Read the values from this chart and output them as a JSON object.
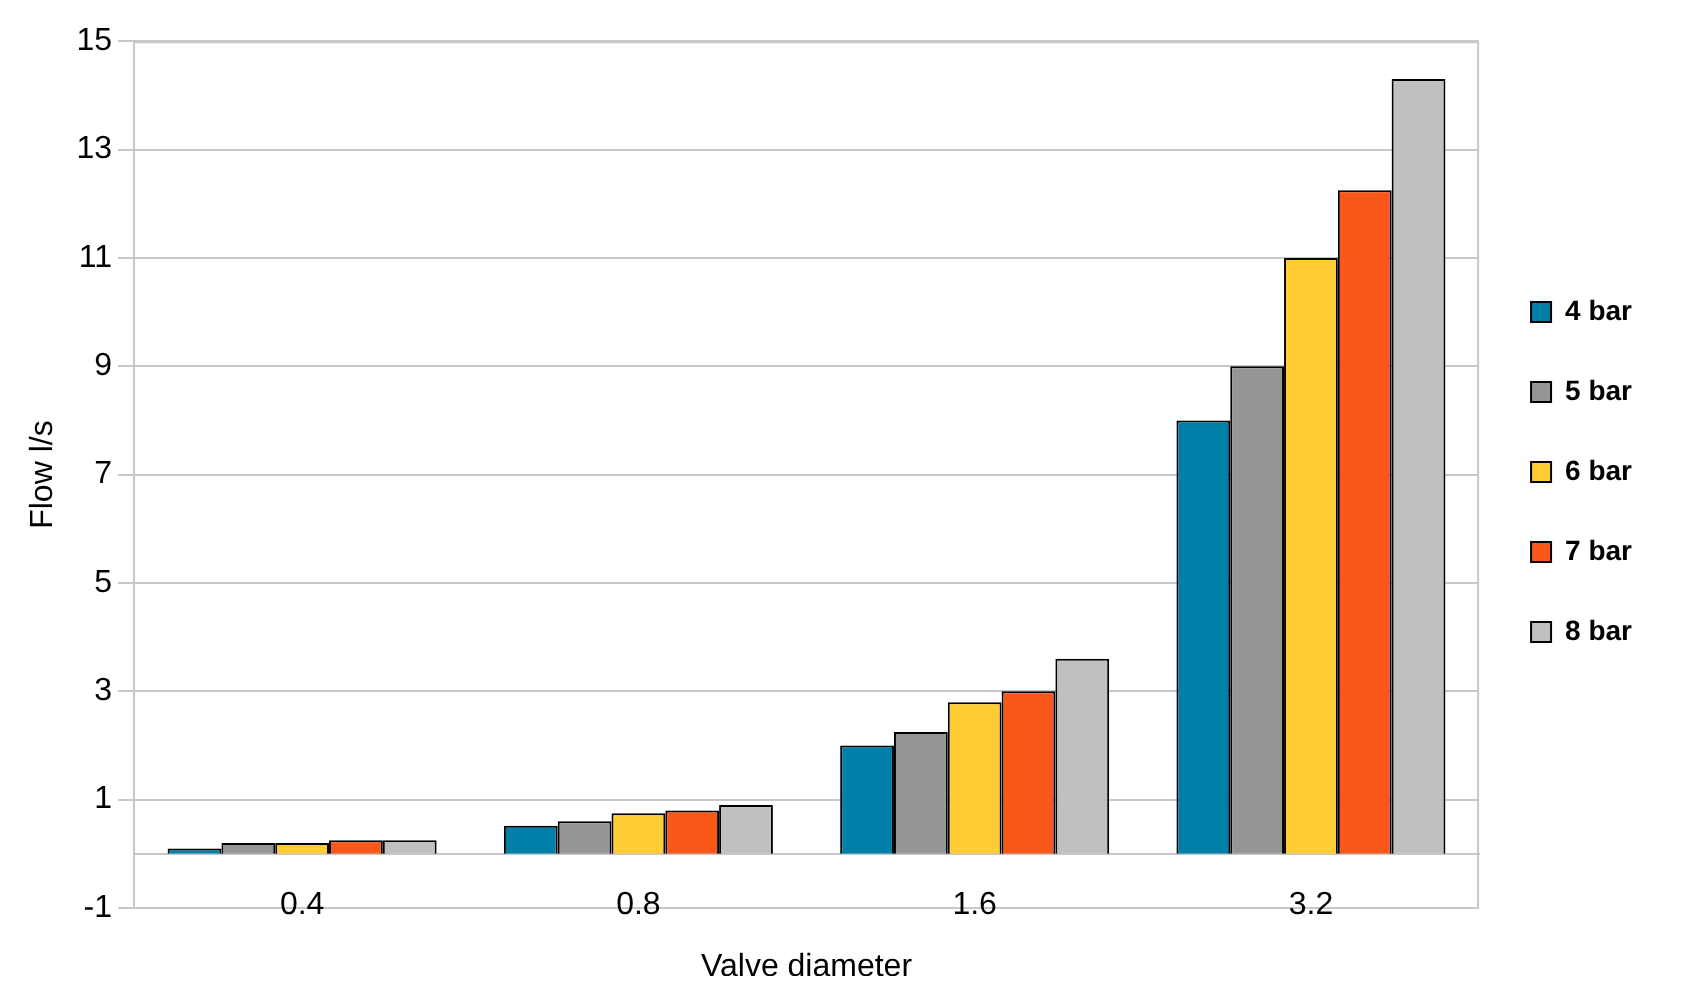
{
  "chart_data": {
    "type": "bar",
    "xlabel": "Valve diameter",
    "ylabel": "Flow l/s",
    "categories": [
      "0.4",
      "0.8",
      "1.6",
      "3.2"
    ],
    "series": [
      {
        "name": "4 bar",
        "color": "#0080a8",
        "values": [
          0.1,
          0.52,
          2.0,
          8.0
        ]
      },
      {
        "name": "5 bar",
        "color": "#969696",
        "values": [
          0.2,
          0.6,
          2.25,
          9.0
        ]
      },
      {
        "name": "6 bar",
        "color": "#ffcc33",
        "values": [
          0.2,
          0.75,
          2.8,
          11.0
        ]
      },
      {
        "name": "7 bar",
        "color": "#f95818",
        "values": [
          0.25,
          0.8,
          3.0,
          12.25
        ]
      },
      {
        "name": "8 bar",
        "color": "#c0c0c0",
        "values": [
          0.25,
          0.9,
          3.6,
          14.3
        ]
      }
    ],
    "ylim": [
      -1,
      15
    ],
    "yticks": [
      -1,
      1,
      3,
      5,
      7,
      9,
      11,
      13,
      15
    ],
    "grid": "y",
    "legend": "right"
  }
}
